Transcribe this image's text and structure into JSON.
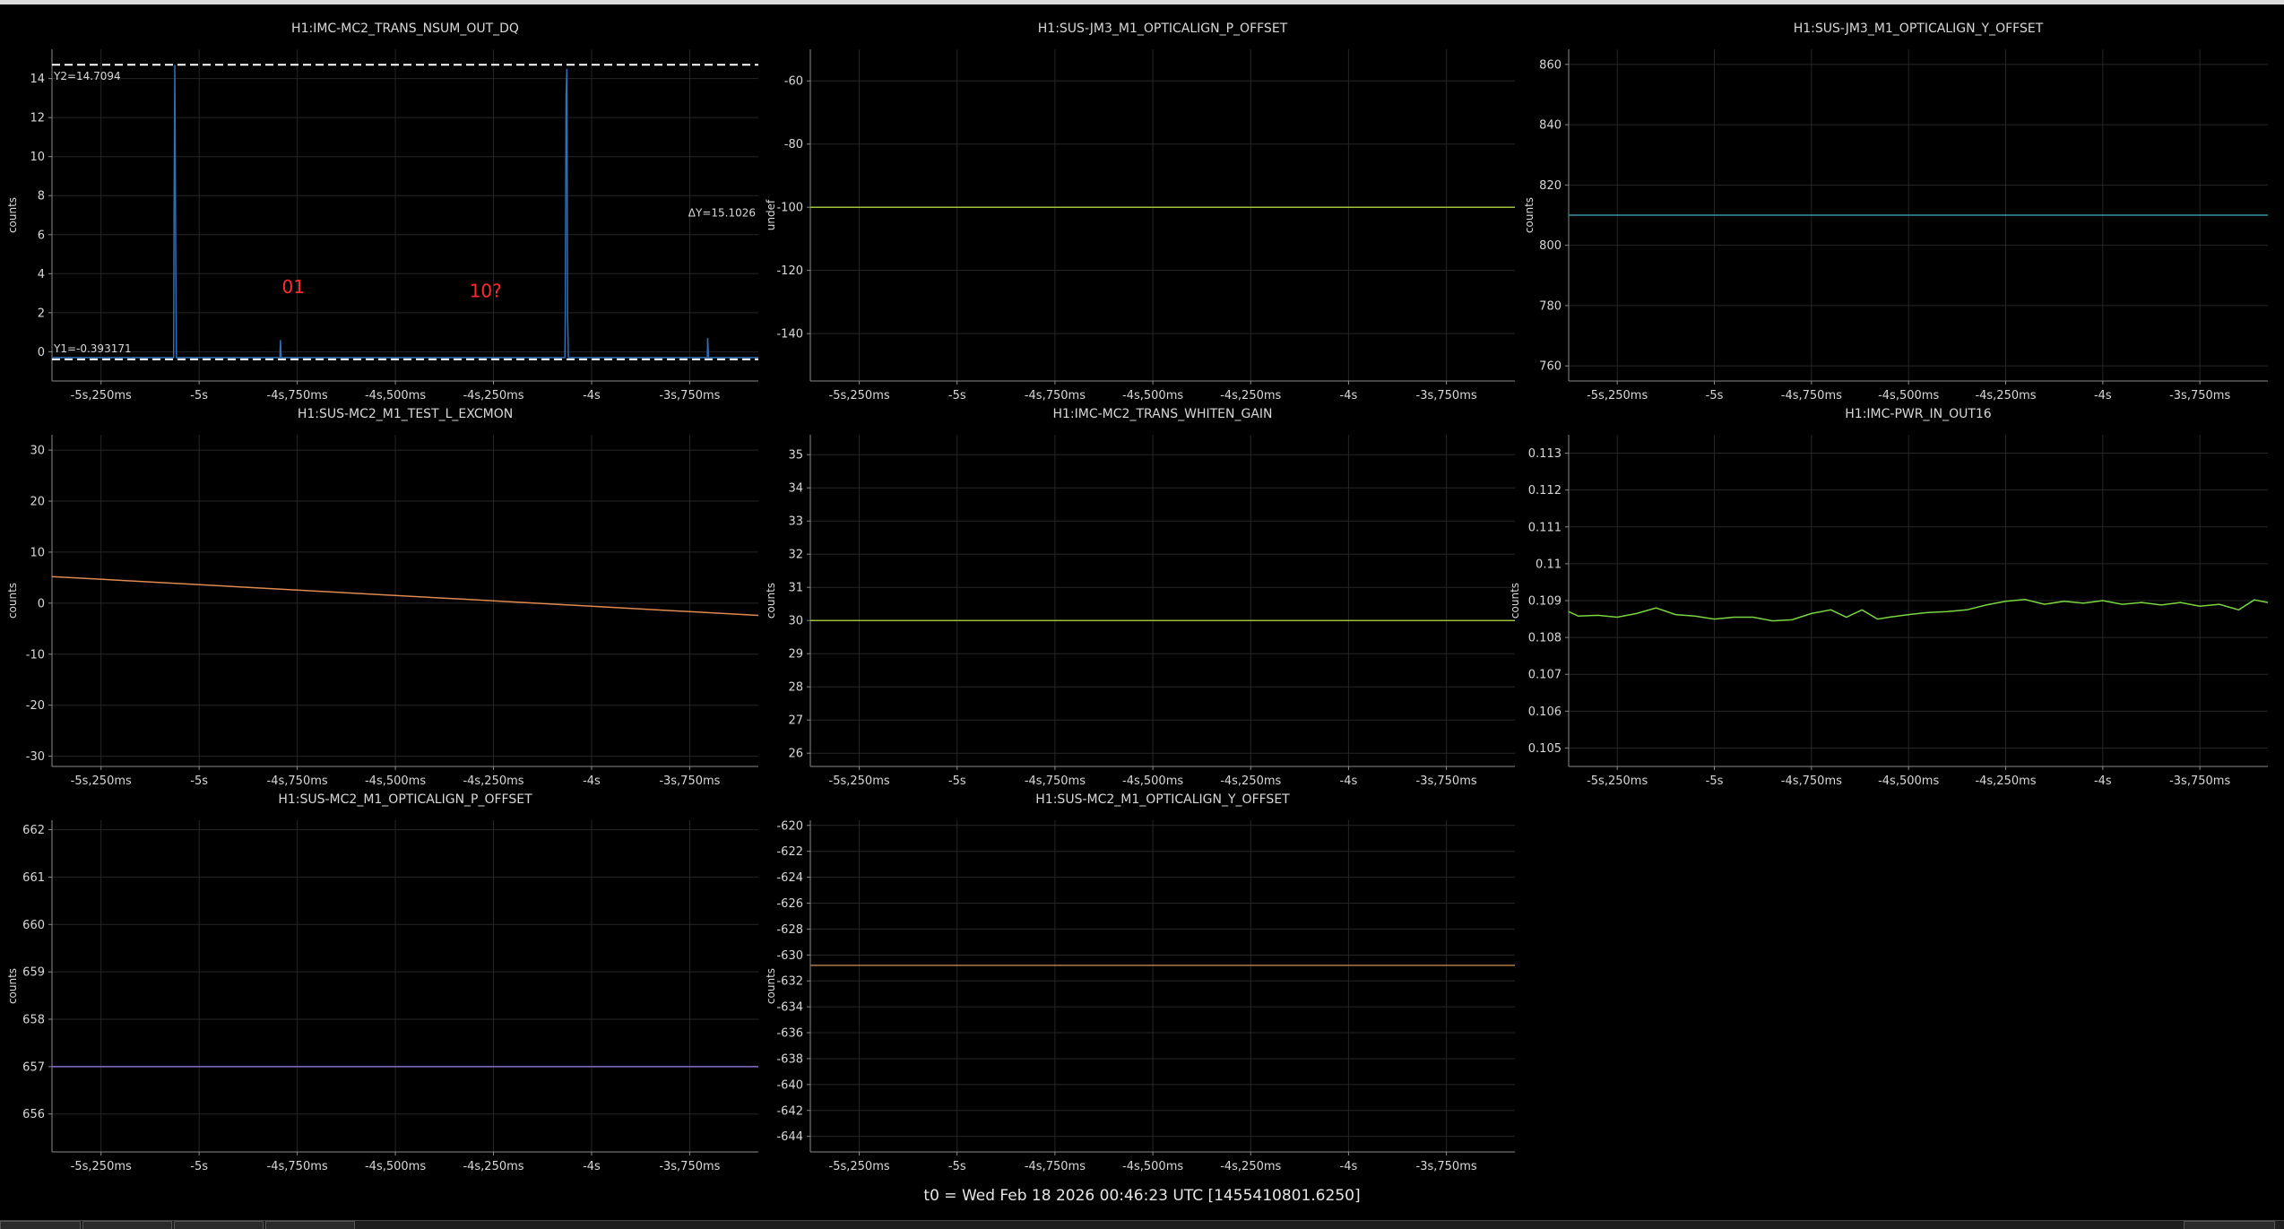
{
  "footer": "t0 = Wed Feb 18 2026 00:46:23 UTC [1455410801.6250]",
  "colors": {
    "background": "#000000",
    "grid": "#262626",
    "axis": "#8a8a8a",
    "text": "#d8d8d8",
    "annotation": "#ff2a2a",
    "cursor": "#ffffff"
  },
  "x_axis": {
    "range": [
      -5.375,
      -3.575
    ],
    "ticks": [
      -5.25,
      -5.0,
      -4.75,
      -4.5,
      -4.25,
      -4.0,
      -3.75
    ],
    "tick_labels": [
      "-5s,250ms",
      "-5s",
      "-4s,750ms",
      "-4s,500ms",
      "-4s,250ms",
      "-4s",
      "-3s,750ms"
    ]
  },
  "chart_data": [
    {
      "type": "line",
      "title": "H1:IMC-MC2_TRANS_NSUM_OUT_DQ",
      "ylabel": "counts",
      "ylim": [
        -1.5,
        15.5
      ],
      "yticks": [
        0,
        2,
        4,
        6,
        8,
        10,
        12,
        14
      ],
      "ytick_labels": [
        "0",
        "2",
        "4",
        "6",
        "8",
        "10",
        "12",
        "14"
      ],
      "color": "#2f6fb3",
      "series": [
        {
          "points": [
            [
              -5.375,
              -0.3
            ],
            [
              -5.065,
              -0.3
            ],
            [
              -5.064,
              6.1
            ],
            [
              -5.062,
              14.7
            ],
            [
              -5.06,
              6.1
            ],
            [
              -5.058,
              -0.3
            ],
            [
              -4.794,
              -0.3
            ],
            [
              -4.793,
              0.6
            ],
            [
              -4.791,
              -0.3
            ],
            [
              -4.068,
              -0.3
            ],
            [
              -4.067,
              1.8
            ],
            [
              -4.065,
              13.2
            ],
            [
              -4.063,
              14.5
            ],
            [
              -4.061,
              2.0
            ],
            [
              -4.059,
              -0.3
            ],
            [
              -3.705,
              -0.3
            ],
            [
              -3.704,
              0.7
            ],
            [
              -3.702,
              -0.3
            ],
            [
              -3.575,
              -0.3
            ]
          ]
        }
      ],
      "cursors": {
        "y1": -0.393171,
        "y2": 14.7094,
        "y1_label": "Y1=-0.393171",
        "y2_label": "Y2=14.7094",
        "delta_label": "ΔY=15.1026"
      },
      "annotations": [
        {
          "text": "01",
          "x": -4.76,
          "y": 3.0
        },
        {
          "text": "10?",
          "x": -4.27,
          "y": 2.8
        }
      ]
    },
    {
      "type": "line",
      "title": "H1:SUS-JM3_M1_OPTICALIGN_P_OFFSET",
      "ylabel": "undef",
      "ylim": [
        -155,
        -50
      ],
      "yticks": [
        -140,
        -120,
        -100,
        -80,
        -60
      ],
      "ytick_labels": [
        "-140",
        "-120",
        "-100",
        "-80",
        "-60"
      ],
      "color": "#9fbf3a",
      "series": [
        {
          "points": [
            [
              -5.375,
              -100
            ],
            [
              -3.575,
              -100
            ]
          ]
        }
      ]
    },
    {
      "type": "line",
      "title": "H1:SUS-JM3_M1_OPTICALIGN_Y_OFFSET",
      "ylabel": "counts",
      "ylim": [
        755,
        865
      ],
      "yticks": [
        760,
        780,
        800,
        820,
        840,
        860
      ],
      "ytick_labels": [
        "760",
        "780",
        "800",
        "820",
        "840",
        "860"
      ],
      "color": "#3a8fa8",
      "series": [
        {
          "points": [
            [
              -5.375,
              810
            ],
            [
              -3.575,
              810
            ]
          ]
        }
      ]
    },
    {
      "type": "line",
      "title": "H1:SUS-MC2_M1_TEST_L_EXCMON",
      "ylabel": "counts",
      "ylim": [
        -32,
        33
      ],
      "yticks": [
        -30,
        -20,
        -10,
        0,
        10,
        20,
        30
      ],
      "ytick_labels": [
        "-30",
        "-20",
        "-10",
        "0",
        "10",
        "20",
        "30"
      ],
      "color": "#e08a50",
      "series": [
        {
          "points": [
            [
              -5.375,
              5.2
            ],
            [
              -3.575,
              -2.4
            ]
          ]
        }
      ]
    },
    {
      "type": "line",
      "title": "H1:IMC-MC2_TRANS_WHITEN_GAIN",
      "ylabel": "counts",
      "ylim": [
        25.6,
        35.6
      ],
      "yticks": [
        26,
        27,
        28,
        29,
        30,
        31,
        32,
        33,
        34,
        35
      ],
      "ytick_labels": [
        "26",
        "27",
        "28",
        "29",
        "30",
        "31",
        "32",
        "33",
        "34",
        "35"
      ],
      "color": "#9fbf3a",
      "series": [
        {
          "points": [
            [
              -5.375,
              30
            ],
            [
              -3.575,
              30
            ]
          ]
        }
      ]
    },
    {
      "type": "line",
      "title": "H1:IMC-PWR_IN_OUT16",
      "ylabel": "counts",
      "ylim": [
        0.1045,
        0.1135
      ],
      "yticks": [
        0.105,
        0.106,
        0.107,
        0.108,
        0.109,
        0.11,
        0.111,
        0.112,
        0.113
      ],
      "ytick_labels": [
        "0.105",
        "0.106",
        "0.107",
        "0.108",
        "0.109",
        "0.11",
        "0.111",
        "0.112",
        "0.113"
      ],
      "color": "#7ad640",
      "series": [
        {
          "points": [
            [
              -5.375,
              0.1087
            ],
            [
              -5.35,
              0.10858
            ],
            [
              -5.3,
              0.1086
            ],
            [
              -5.25,
              0.10855
            ],
            [
              -5.2,
              0.10865
            ],
            [
              -5.15,
              0.1088
            ],
            [
              -5.1,
              0.10862
            ],
            [
              -5.05,
              0.10858
            ],
            [
              -5.0,
              0.1085
            ],
            [
              -4.95,
              0.10855
            ],
            [
              -4.9,
              0.10855
            ],
            [
              -4.85,
              0.10845
            ],
            [
              -4.8,
              0.10848
            ],
            [
              -4.75,
              0.10865
            ],
            [
              -4.7,
              0.10875
            ],
            [
              -4.66,
              0.10855
            ],
            [
              -4.62,
              0.10875
            ],
            [
              -4.58,
              0.1085
            ],
            [
              -4.55,
              0.10855
            ],
            [
              -4.5,
              0.10862
            ],
            [
              -4.45,
              0.10868
            ],
            [
              -4.4,
              0.1087
            ],
            [
              -4.35,
              0.10875
            ],
            [
              -4.3,
              0.10888
            ],
            [
              -4.25,
              0.10898
            ],
            [
              -4.2,
              0.10903
            ],
            [
              -4.15,
              0.1089
            ],
            [
              -4.1,
              0.10898
            ],
            [
              -4.05,
              0.10893
            ],
            [
              -4.0,
              0.109
            ],
            [
              -3.95,
              0.1089
            ],
            [
              -3.9,
              0.10895
            ],
            [
              -3.85,
              0.10888
            ],
            [
              -3.8,
              0.10895
            ],
            [
              -3.75,
              0.10885
            ],
            [
              -3.7,
              0.1089
            ],
            [
              -3.65,
              0.10875
            ],
            [
              -3.61,
              0.10902
            ],
            [
              -3.575,
              0.10895
            ]
          ]
        }
      ]
    },
    {
      "type": "line",
      "title": "H1:SUS-MC2_M1_OPTICALIGN_P_OFFSET",
      "ylabel": "counts",
      "ylim": [
        655.2,
        662.2
      ],
      "yticks": [
        656,
        657,
        658,
        659,
        660,
        661,
        662
      ],
      "ytick_labels": [
        "656",
        "657",
        "658",
        "659",
        "660",
        "661",
        "662"
      ],
      "color": "#8a6cc8",
      "series": [
        {
          "points": [
            [
              -5.375,
              657
            ],
            [
              -3.575,
              657
            ]
          ]
        }
      ]
    },
    {
      "type": "line",
      "title": "H1:SUS-MC2_M1_OPTICALIGN_Y_OFFSET",
      "ylabel": "counts",
      "ylim": [
        -645.2,
        -619.6
      ],
      "yticks": [
        -644,
        -642,
        -640,
        -638,
        -636,
        -634,
        -632,
        -630,
        -628,
        -626,
        -624,
        -622,
        -620
      ],
      "ytick_labels": [
        "-644",
        "-642",
        "-640",
        "-638",
        "-636",
        "-634",
        "-632",
        "-630",
        "-628",
        "-626",
        "-624",
        "-622",
        "-620"
      ],
      "color": "#b07a4a",
      "series": [
        {
          "points": [
            [
              -5.375,
              -630.8
            ],
            [
              -3.575,
              -630.8
            ]
          ]
        }
      ]
    }
  ]
}
